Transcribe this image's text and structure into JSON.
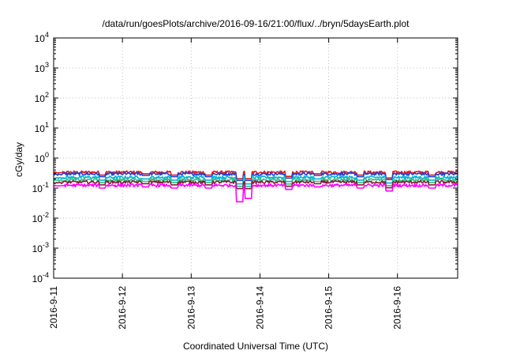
{
  "chart_data": {
    "type": "line",
    "title": "/data/run/goesPlots/archive/2016-09-16/21:00/flux/../bryn/5daysEarth.plot",
    "xlabel": "Coordinated Universal Time (UTC)",
    "ylabel": "cGy/day",
    "x_range": [
      "2016-09-11",
      "2016-09-16T21:00"
    ],
    "x_ticks": [
      "2016-9-11",
      "2016-9-12",
      "2016-9-13",
      "2016-9-14",
      "2016-9-15",
      "2016-9-16"
    ],
    "y_scale": "log",
    "ylim": [
      0.0001,
      10000
    ],
    "y_ticks": [
      {
        "base": "10",
        "exp": "-4"
      },
      {
        "base": "10",
        "exp": "-3"
      },
      {
        "base": "10",
        "exp": "-2"
      },
      {
        "base": "10",
        "exp": "-1"
      },
      {
        "base": "10",
        "exp": "0"
      },
      {
        "base": "10",
        "exp": "1"
      },
      {
        "base": "10",
        "exp": "2"
      },
      {
        "base": "10",
        "exp": "3"
      },
      {
        "base": "10",
        "exp": "4"
      }
    ],
    "grid": true,
    "legend": "none",
    "series": [
      {
        "color": "#e41a1c",
        "typical": 0.34
      },
      {
        "color": "#1f3fd6",
        "typical": 0.3
      },
      {
        "color": "#00b4d8",
        "typical": 0.23
      },
      {
        "color": "#33c27a",
        "typical": 0.19
      },
      {
        "color": "#8b1a3a",
        "typical": 0.16
      },
      {
        "color": "#ff00ff",
        "typical": 0.125
      }
    ],
    "dips": [
      {
        "x": "2016-09-11T02:00",
        "value": 0.12
      },
      {
        "x": "2016-09-11T17:00",
        "value": 0.1
      },
      {
        "x": "2016-09-12T08:00",
        "value": 0.11
      },
      {
        "x": "2016-09-12T18:00",
        "value": 0.1
      },
      {
        "x": "2016-09-13T06:00",
        "value": 0.1
      },
      {
        "x": "2016-09-13T17:00",
        "value": 0.035
      },
      {
        "x": "2016-09-13T20:00",
        "value": 0.045
      },
      {
        "x": "2016-09-14T10:00",
        "value": 0.09
      },
      {
        "x": "2016-09-14T20:00",
        "value": 0.11
      },
      {
        "x": "2016-09-15T11:00",
        "value": 0.1
      },
      {
        "x": "2016-09-15T21:00",
        "value": 0.08
      },
      {
        "x": "2016-09-16T12:00",
        "value": 0.1
      }
    ]
  }
}
